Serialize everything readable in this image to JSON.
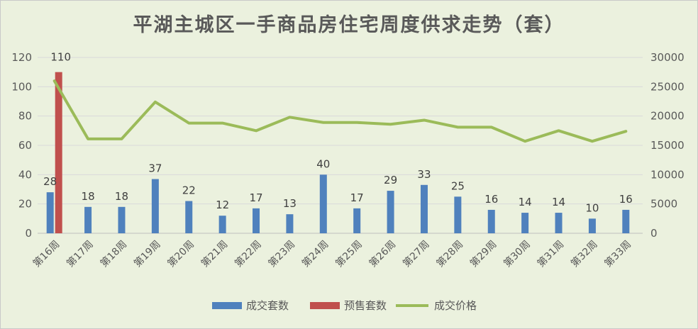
{
  "chart_data": {
    "type": "bar",
    "title": "平湖主城区一手商品房住宅周度供求走势（套）",
    "categories": [
      "第16周",
      "第17周",
      "第18周",
      "第19周",
      "第20周",
      "第21周",
      "第22周",
      "第23周",
      "第24周",
      "第25周",
      "第26周",
      "第27周",
      "第28周",
      "第29周",
      "第30周",
      "第31周",
      "第32周",
      "第33周"
    ],
    "series": [
      {
        "name": "成交套数",
        "type": "bar",
        "axis": "left",
        "color": "#4f81bd",
        "values": [
          28,
          18,
          18,
          37,
          22,
          12,
          17,
          13,
          40,
          17,
          29,
          33,
          25,
          16,
          14,
          14,
          10,
          16
        ]
      },
      {
        "name": "预售套数",
        "type": "bar",
        "axis": "left",
        "color": "#c0504d",
        "values": [
          110,
          null,
          null,
          null,
          null,
          null,
          null,
          null,
          null,
          null,
          null,
          null,
          null,
          null,
          null,
          null,
          null,
          null
        ]
      },
      {
        "name": "成交价格",
        "type": "line",
        "axis": "right",
        "color": "#9bbb59",
        "values": [
          26000,
          16100,
          16100,
          22400,
          18800,
          18800,
          17500,
          19800,
          18900,
          18900,
          18600,
          19300,
          18100,
          18100,
          15700,
          17500,
          15700,
          17400
        ]
      }
    ],
    "data_labels": [
      "28",
      "18",
      "18",
      "37",
      "22",
      "12",
      "17",
      "13",
      "40",
      "17",
      "29",
      "33",
      "25",
      "16",
      "14",
      "14",
      "10",
      "16"
    ],
    "extra_label": "110",
    "ylim_left": [
      0,
      120
    ],
    "yticks_left": [
      "0",
      "20",
      "40",
      "60",
      "80",
      "100",
      "120"
    ],
    "ylim_right": [
      0,
      30000
    ],
    "yticks_right": [
      "0",
      "5000",
      "10000",
      "15000",
      "20000",
      "25000",
      "30000"
    ],
    "grid": true,
    "legend_position": "bottom"
  }
}
